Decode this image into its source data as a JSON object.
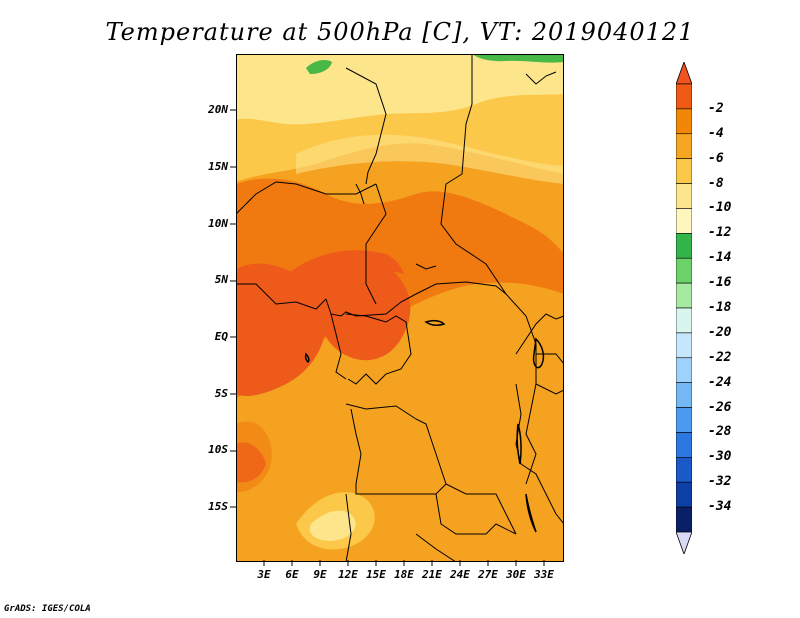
{
  "title": "Temperature at 500hPa [C], VT: 2019040121",
  "credit": "GrADS: IGES/COLA",
  "lat_ticks": [
    "20N",
    "15N",
    "10N",
    "5N",
    "EQ",
    "5S",
    "10S",
    "15S"
  ],
  "lon_ticks": [
    "3E",
    "6E",
    "9E",
    "12E",
    "15E",
    "18E",
    "21E",
    "24E",
    "27E",
    "30E",
    "33E"
  ],
  "colorbar": {
    "labels": [
      "-2",
      "-4",
      "-6",
      "-8",
      "-10",
      "-12",
      "-14",
      "-16",
      "-18",
      "-20",
      "-22",
      "-24",
      "-26",
      "-28",
      "-30",
      "-32",
      "-34"
    ],
    "colors": [
      "#f05a14",
      "#f28705",
      "#f7a623",
      "#fbc84a",
      "#fde58c",
      "#fef6bd",
      "#33b54a",
      "#6cd36a",
      "#a6e9a0",
      "#d8f6ee",
      "#c5e6fb",
      "#9fd2fa",
      "#74b8f5",
      "#4a9aef",
      "#2b78e0",
      "#195ac8",
      "#0e3fa6",
      "#091f66"
    ],
    "top_arrow_color": "#ee5320",
    "bottom_arrow_color": "#d9d9f7"
  },
  "field_colors": {
    "base": "#f5a221",
    "warm": "#f07a0f",
    "warmest": "#ed5a1a",
    "cool": "#fbc84a",
    "coolest": "#fde58c",
    "green": "#48b847"
  }
}
